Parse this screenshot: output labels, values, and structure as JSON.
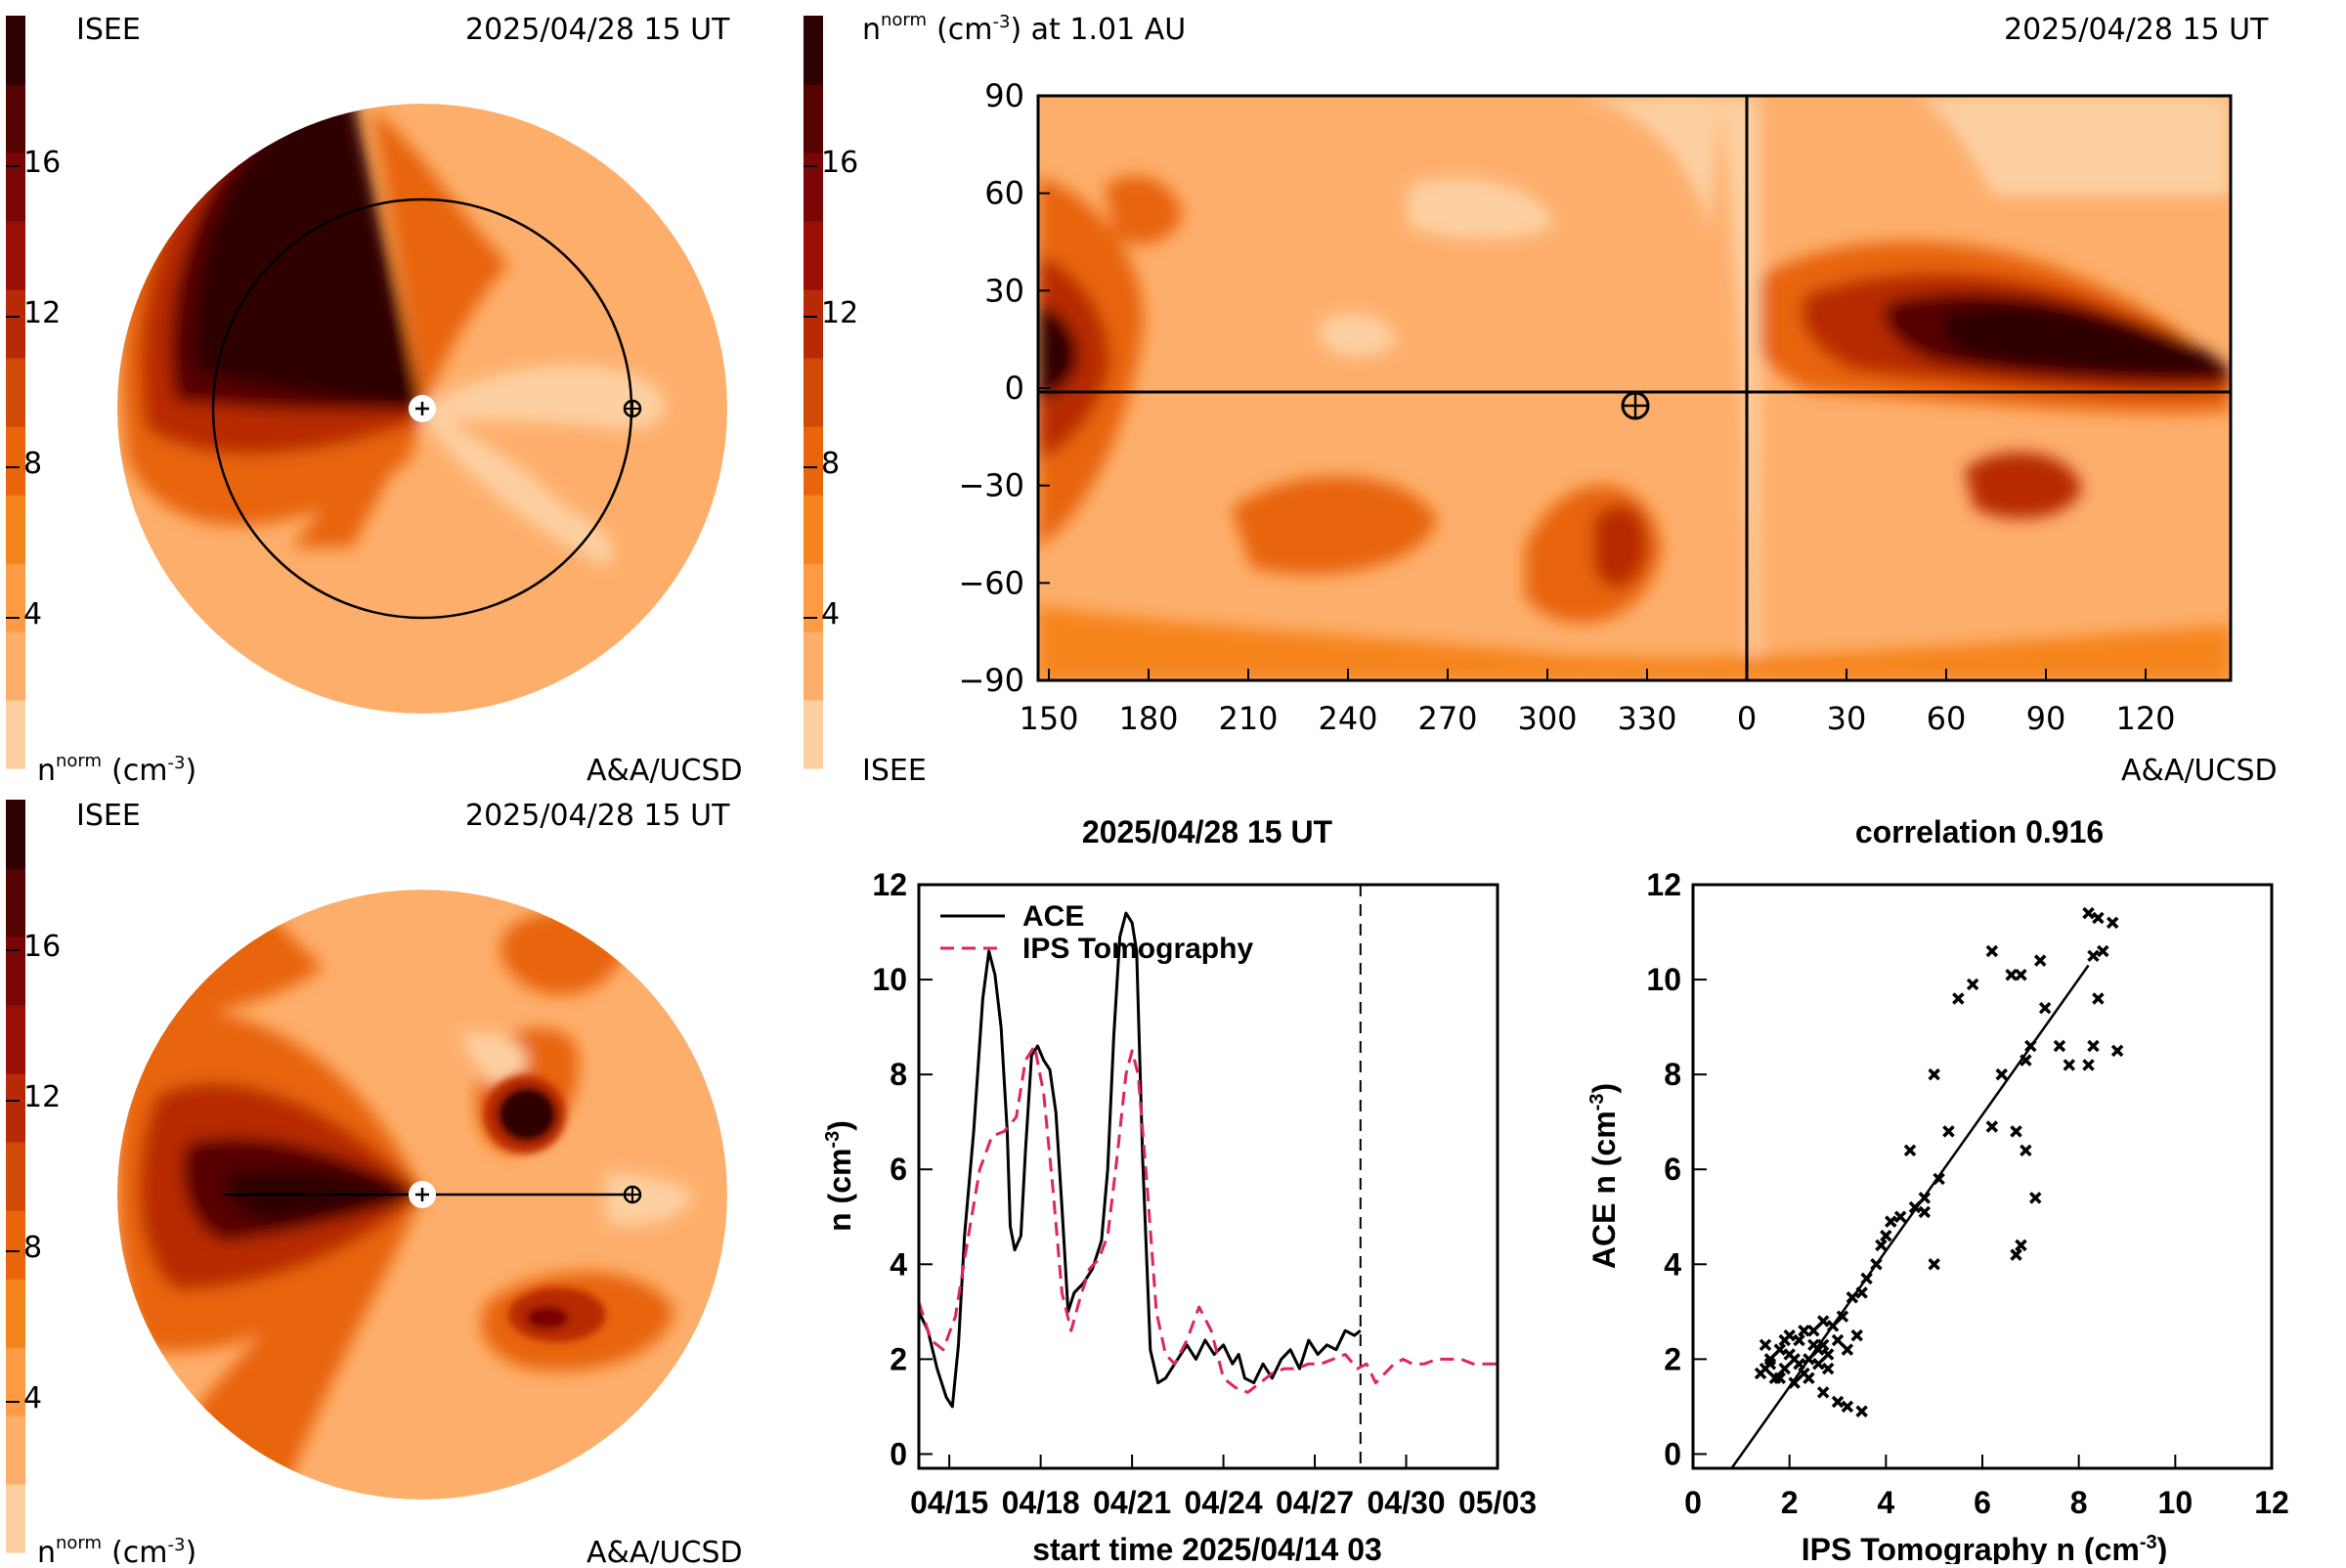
{
  "colors": {
    "scale": [
      "#fdd0a2",
      "#fdae6b",
      "#fd9b44",
      "#f5841f",
      "#e8650c",
      "#d14b08",
      "#b82a06",
      "#9a0f04",
      "#7a0605",
      "#560303",
      "#2e0202"
    ],
    "background": "#ffffff",
    "axis": "#000000",
    "ace_line": "#000000",
    "ips_line": "#e0245e"
  },
  "panel_top_left": {
    "org": "ISEE",
    "date": "2025/04/28 15 UT",
    "unit_base": "n",
    "unit_sup": "norm",
    "unit_paren": "(cm",
    "unit_exp": "-3",
    "unit_close": ")",
    "credit": "A&A/UCSD",
    "scale_ticks": [
      "4",
      "8",
      "12",
      "16"
    ]
  },
  "panel_bottom_left": {
    "org": "ISEE",
    "date": "2025/04/28 15 UT",
    "unit_base": "n",
    "unit_sup": "norm",
    "unit_paren": "(cm",
    "unit_exp": "-3",
    "unit_close": ")",
    "credit": "A&A/UCSD",
    "scale_ticks": [
      "4",
      "8",
      "12",
      "16"
    ]
  },
  "panel_map": {
    "title_base": "n",
    "title_sup": "norm",
    "title_rest": "(cm",
    "title_exp": "-3",
    "title_tail": ") at 1.01 AU",
    "date": "2025/04/28 15 UT",
    "org": "ISEE",
    "credit": "A&A/UCSD",
    "scale_ticks": [
      "4",
      "8",
      "12",
      "16"
    ]
  },
  "chart_data": [
    {
      "type": "heatmap",
      "x_tick_labels": [
        "150",
        "180",
        "210",
        "240",
        "270",
        "300",
        "330",
        "0",
        "30",
        "60",
        "90",
        "120"
      ],
      "y_tick_labels": [
        "90",
        "60",
        "30",
        "0",
        "−30",
        "−60",
        "−90"
      ],
      "y_values": [
        90,
        60,
        30,
        0,
        -30,
        -60,
        -90
      ],
      "ylim": [
        -90,
        90
      ]
    },
    {
      "type": "line",
      "title": "2025/04/28 15 UT",
      "xlabel": "start time 2025/04/14 03",
      "ylabel_main": "n (cm",
      "ylabel_exp": "-3",
      "ylabel_close": ")",
      "x_tick_labels": [
        "04/15",
        "04/18",
        "04/21",
        "04/24",
        "04/27",
        "04/30",
        "05/03"
      ],
      "x_tick_days": [
        1,
        4,
        7,
        10,
        13,
        16,
        19
      ],
      "xlim_days": [
        0,
        19
      ],
      "yticks": [
        0,
        2,
        4,
        6,
        8,
        10,
        12
      ],
      "ylim": [
        -0.3,
        12
      ],
      "now_day": 14.5,
      "series": [
        {
          "name": "ACE",
          "x": [
            0,
            0.3,
            0.6,
            0.9,
            1.1,
            1.3,
            1.5,
            1.8,
            2.1,
            2.3,
            2.5,
            2.7,
            2.9,
            3.0,
            3.15,
            3.35,
            3.5,
            3.7,
            3.9,
            4.1,
            4.3,
            4.5,
            4.7,
            4.9,
            5.1,
            5.4,
            5.7,
            6.0,
            6.2,
            6.4,
            6.6,
            6.8,
            7.0,
            7.15,
            7.35,
            7.6,
            7.85,
            8.1,
            8.4,
            8.8,
            9.1,
            9.4,
            9.7,
            10.0,
            10.3,
            10.5,
            10.7,
            11.0,
            11.3,
            11.6,
            11.9,
            12.2,
            12.5,
            12.8,
            13.1,
            13.4,
            13.7,
            14.0,
            14.3,
            14.5
          ],
          "y": [
            3.0,
            2.6,
            1.8,
            1.2,
            1.0,
            2.3,
            4.6,
            6.8,
            9.6,
            10.6,
            10.1,
            9.0,
            6.8,
            4.8,
            4.3,
            4.6,
            6.4,
            8.4,
            8.6,
            8.3,
            8.1,
            7.2,
            5.2,
            3.0,
            3.4,
            3.6,
            3.9,
            4.5,
            6.0,
            8.8,
            10.9,
            11.4,
            11.2,
            10.6,
            6.2,
            2.2,
            1.5,
            1.6,
            1.9,
            2.3,
            2.0,
            2.4,
            2.1,
            2.3,
            1.9,
            2.1,
            1.6,
            1.5,
            1.9,
            1.6,
            2.0,
            2.2,
            1.8,
            2.4,
            2.1,
            2.3,
            2.2,
            2.6,
            2.5,
            2.6
          ]
        },
        {
          "name": "IPS Tomography",
          "x": [
            0,
            0.4,
            0.8,
            1.2,
            1.6,
            2.0,
            2.4,
            2.8,
            3.2,
            3.5,
            3.8,
            4.1,
            4.4,
            4.7,
            5.0,
            5.3,
            5.6,
            5.9,
            6.2,
            6.5,
            6.8,
            7.0,
            7.2,
            7.5,
            7.8,
            8.1,
            8.4,
            8.8,
            9.2,
            9.6,
            10.0,
            10.4,
            10.8,
            11.2,
            11.6,
            12.0,
            12.4,
            12.8,
            13.2,
            13.6,
            14.0,
            14.4,
            14.7,
            15.0,
            15.3,
            15.6,
            15.9,
            16.2,
            16.6,
            17.0,
            17.4,
            17.8,
            18.2,
            18.6,
            19.0
          ],
          "y": [
            3.2,
            2.4,
            2.2,
            2.9,
            4.5,
            6.0,
            6.7,
            6.8,
            7.1,
            8.3,
            8.6,
            7.6,
            5.6,
            3.4,
            2.6,
            3.3,
            3.9,
            4.1,
            4.6,
            6.2,
            8.0,
            8.5,
            8.0,
            5.6,
            3.0,
            2.1,
            1.9,
            2.4,
            3.1,
            2.6,
            1.6,
            1.4,
            1.3,
            1.5,
            1.7,
            1.8,
            1.8,
            1.9,
            1.9,
            2.0,
            2.1,
            1.8,
            1.9,
            1.5,
            1.7,
            1.9,
            2.0,
            1.9,
            1.9,
            2.0,
            2.0,
            2.0,
            1.9,
            1.9,
            1.9
          ]
        }
      ]
    },
    {
      "type": "scatter",
      "title": "correlation 0.916",
      "xlabel_main": "IPS Tomography n (cm",
      "xlabel_exp": "-3",
      "xlabel_close": ")",
      "ylabel_main": "ACE n (cm",
      "ylabel_exp": "-3",
      "ylabel_close": ")",
      "xticks": [
        0,
        2,
        4,
        6,
        8,
        10,
        12
      ],
      "yticks": [
        0,
        2,
        4,
        6,
        8,
        10,
        12
      ],
      "xlim": [
        0,
        12
      ],
      "ylim": [
        -0.3,
        12
      ],
      "fit": {
        "x": [
          0.8,
          8.2
        ],
        "y": [
          -0.3,
          10.3
        ]
      },
      "points": [
        [
          1.4,
          1.7
        ],
        [
          1.5,
          2.3
        ],
        [
          1.6,
          1.9
        ],
        [
          1.7,
          1.6
        ],
        [
          1.8,
          2.2
        ],
        [
          1.9,
          1.8
        ],
        [
          2.0,
          2.1
        ],
        [
          2.1,
          1.5
        ],
        [
          2.2,
          2.4
        ],
        [
          2.3,
          1.7
        ],
        [
          2.4,
          2.0
        ],
        [
          2.5,
          2.6
        ],
        [
          2.6,
          1.9
        ],
        [
          2.7,
          2.3
        ],
        [
          2.8,
          2.1
        ],
        [
          2.9,
          2.7
        ],
        [
          3.0,
          2.4
        ],
        [
          3.1,
          2.9
        ],
        [
          3.2,
          2.2
        ],
        [
          3.3,
          3.3
        ],
        [
          3.4,
          2.5
        ],
        [
          1.6,
          2.0
        ],
        [
          1.8,
          1.6
        ],
        [
          2.0,
          2.5
        ],
        [
          2.2,
          1.9
        ],
        [
          2.4,
          1.6
        ],
        [
          2.6,
          2.2
        ],
        [
          2.8,
          1.8
        ],
        [
          1.5,
          1.8
        ],
        [
          1.9,
          2.4
        ],
        [
          2.1,
          2.0
        ],
        [
          2.3,
          2.6
        ],
        [
          2.5,
          2.3
        ],
        [
          2.7,
          2.8
        ],
        [
          3.5,
          3.4
        ],
        [
          3.6,
          3.7
        ],
        [
          3.8,
          4.0
        ],
        [
          4.0,
          4.6
        ],
        [
          4.1,
          4.9
        ],
        [
          3.9,
          4.4
        ],
        [
          4.3,
          5.0
        ],
        [
          4.6,
          5.2
        ],
        [
          4.8,
          5.4
        ],
        [
          5.0,
          4.0
        ],
        [
          4.5,
          6.4
        ],
        [
          3.2,
          1.0
        ],
        [
          3.5,
          0.9
        ],
        [
          3.0,
          1.1
        ],
        [
          2.7,
          1.3
        ],
        [
          5.0,
          8.0
        ],
        [
          5.5,
          9.6
        ],
        [
          5.8,
          9.9
        ],
        [
          6.2,
          10.6
        ],
        [
          6.6,
          10.1
        ],
        [
          6.8,
          10.1
        ],
        [
          7.2,
          10.4
        ],
        [
          7.3,
          9.4
        ],
        [
          7.0,
          8.6
        ],
        [
          6.9,
          8.3
        ],
        [
          6.4,
          8.0
        ],
        [
          6.2,
          6.9
        ],
        [
          6.7,
          6.8
        ],
        [
          6.9,
          6.4
        ],
        [
          7.1,
          5.4
        ],
        [
          6.8,
          4.4
        ],
        [
          6.7,
          4.2
        ],
        [
          7.6,
          8.6
        ],
        [
          7.8,
          8.2
        ],
        [
          8.2,
          8.2
        ],
        [
          8.3,
          8.6
        ],
        [
          8.8,
          8.5
        ],
        [
          8.4,
          9.6
        ],
        [
          8.2,
          11.4
        ],
        [
          8.4,
          11.3
        ],
        [
          8.7,
          11.2
        ],
        [
          8.3,
          10.5
        ],
        [
          8.5,
          10.6
        ],
        [
          5.3,
          6.8
        ],
        [
          5.1,
          5.8
        ],
        [
          4.8,
          5.1
        ]
      ]
    }
  ]
}
